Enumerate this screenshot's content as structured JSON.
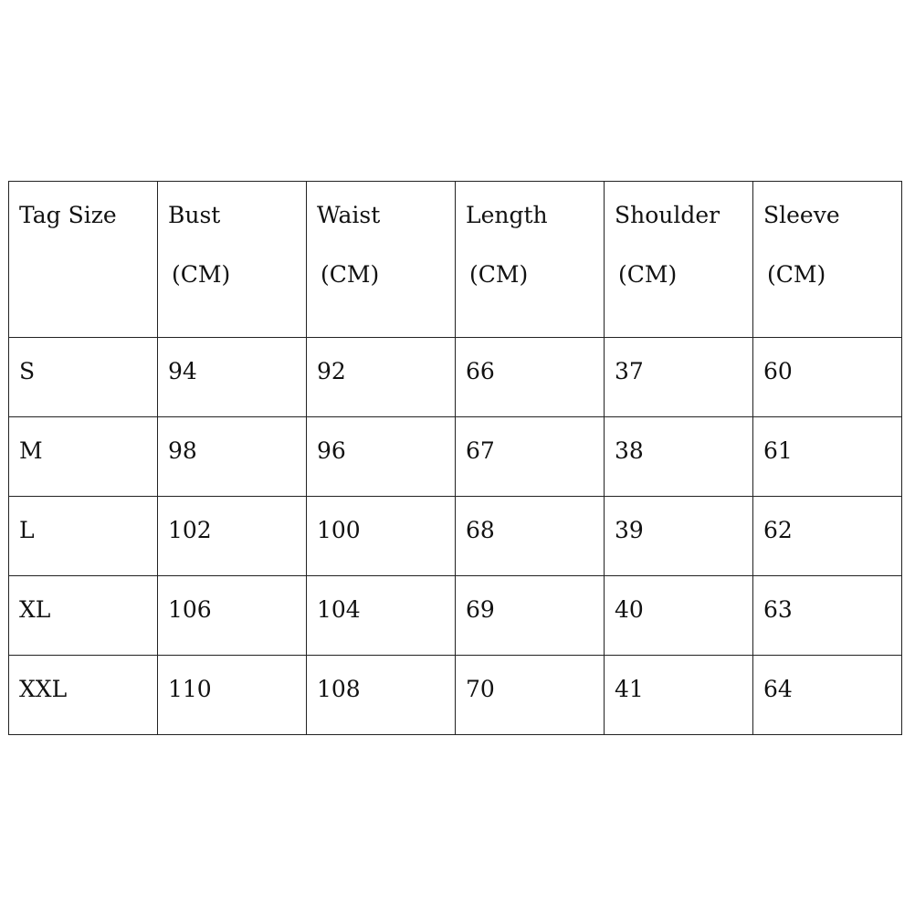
{
  "headers": [
    {
      "label": "Tag Size",
      "unit": ""
    },
    {
      "label": "Bust",
      "unit": "(CM)"
    },
    {
      "label": "Waist",
      "unit": "(CM)"
    },
    {
      "label": "Length",
      "unit": "(CM)"
    },
    {
      "label": "Shoulder",
      "unit": "(CM)"
    },
    {
      "label": "Sleeve",
      "unit": "(CM)"
    }
  ],
  "rows": [
    [
      "S",
      "94",
      "92",
      "66",
      "37",
      "60"
    ],
    [
      "M",
      "98",
      "96",
      "67",
      "38",
      "61"
    ],
    [
      "L",
      "102",
      "100",
      "68",
      "39",
      "62"
    ],
    [
      "XL",
      "106",
      "104",
      "69",
      "40",
      "63"
    ],
    [
      "XXL",
      "110",
      "108",
      "70",
      "41",
      "64"
    ]
  ]
}
